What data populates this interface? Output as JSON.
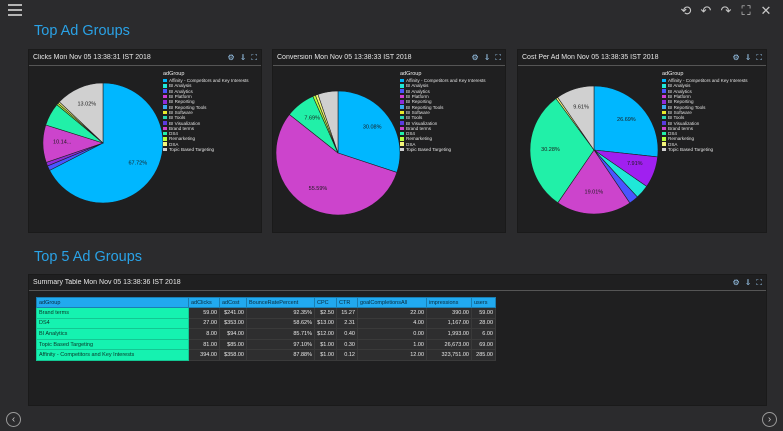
{
  "header": {
    "menu_icon": "hamburger-icon",
    "toolbar_icons": [
      "undo-icon",
      "redo-icon",
      "redo-alt-icon",
      "fullscreen-icon",
      "close-icon"
    ]
  },
  "sections": {
    "top_ad_groups": "Top Ad Groups",
    "top5_ad_groups": "Top 5 Ad Groups"
  },
  "legend": {
    "title": "adGroup",
    "items": [
      {
        "label": "Affinity - Competitors and Key Interests",
        "color": "#00b7ff"
      },
      {
        "label": "BI Analysis",
        "color": "#1fe8d8"
      },
      {
        "label": "BI Analytics",
        "color": "#4a55ff"
      },
      {
        "label": "BI Platform",
        "color": "#cf3bd6"
      },
      {
        "label": "BI Reporting",
        "color": "#8f2bd9"
      },
      {
        "label": "BI Reporting Tools",
        "color": "#3aa7ee"
      },
      {
        "label": "BI Software",
        "color": "#e8e82a"
      },
      {
        "label": "BI Tools",
        "color": "#2ad2b0"
      },
      {
        "label": "BI Visualization",
        "color": "#5b3ae0"
      },
      {
        "label": "Brand terms",
        "color": "#cc44cc"
      },
      {
        "label": "DS4",
        "color": "#21f0a8"
      },
      {
        "label": "Remarketing",
        "color": "#b6ff3c"
      },
      {
        "label": "DSA",
        "color": "#f5f57a"
      },
      {
        "label": "Topic Based Targeting",
        "color": "#d0d0d0"
      }
    ]
  },
  "chart_data": [
    {
      "type": "pie",
      "title": "Clicks Mon Nov 05 13:38:31 IST 2018",
      "slices": [
        {
          "name": "Affinity - Competitors and Key Interests",
          "value": 67.72,
          "color": "#00b7ff",
          "label": "67.72%"
        },
        {
          "name": "BI Analytics",
          "value": 1.3,
          "color": "#4a55ff",
          "label": ""
        },
        {
          "name": "BI Reporting",
          "value": 1.0,
          "color": "#8f2bd9",
          "label": ""
        },
        {
          "name": "Brand terms",
          "value": 10.14,
          "color": "#cc44cc",
          "label": "10.14..."
        },
        {
          "name": "DS4",
          "value": 6.2,
          "color": "#21f0a8",
          "label": ""
        },
        {
          "name": "Remarketing",
          "value": 0.5,
          "color": "#b6ff3c",
          "label": ""
        },
        {
          "name": "DSA",
          "value": 0.5,
          "color": "#f5f57a",
          "label": ""
        },
        {
          "name": "Topic Based Targeting",
          "value": 13.02,
          "color": "#d0d0d0",
          "label": "13.02%"
        }
      ]
    },
    {
      "type": "pie",
      "title": "Conversion Mon Nov 05 13:38:33 IST 2018",
      "slices": [
        {
          "name": "Affinity - Competitors and Key Interests",
          "value": 30.08,
          "color": "#00b7ff",
          "label": "30.08%"
        },
        {
          "name": "Brand terms",
          "value": 55.59,
          "color": "#cc44cc",
          "label": "55.59%"
        },
        {
          "name": "DS4",
          "value": 7.69,
          "color": "#21f0a8",
          "label": "7.69%"
        },
        {
          "name": "Remarketing",
          "value": 0.7,
          "color": "#b6ff3c",
          "label": ""
        },
        {
          "name": "DSA",
          "value": 0.7,
          "color": "#f5f57a",
          "label": ""
        },
        {
          "name": "Topic Based Targeting",
          "value": 5.24,
          "color": "#d0d0d0",
          "label": ""
        }
      ]
    },
    {
      "type": "pie",
      "title": "Cost Per Ad Mon Nov 05 13:38:35 IST 2018",
      "slices": [
        {
          "name": "Affinity - Competitors and Key Interests",
          "value": 26.69,
          "color": "#00b7ff",
          "label": "26.69%"
        },
        {
          "name": "BI Platform",
          "value": 7.91,
          "color": "#a020f0",
          "label": "7.91%"
        },
        {
          "name": "BI Analysis",
          "value": 3.5,
          "color": "#1fe8d8",
          "label": ""
        },
        {
          "name": "BI Analytics",
          "value": 2.4,
          "color": "#4a55ff",
          "label": ""
        },
        {
          "name": "Brand terms",
          "value": 19.01,
          "color": "#cc44cc",
          "label": "19.01%"
        },
        {
          "name": "DS4",
          "value": 30.28,
          "color": "#21f0a8",
          "label": "30.28%"
        },
        {
          "name": "DSA",
          "value": 0.5,
          "color": "#f5f57a",
          "label": ""
        },
        {
          "name": "Topic Based Targeting",
          "value": 9.61,
          "color": "#d0d0d0",
          "label": "9.61%"
        }
      ]
    }
  ],
  "panel_icons": [
    "settings-icon",
    "download-icon",
    "expand-icon"
  ],
  "summary_table": {
    "title": "Summary Table Mon Nov 05 13:38:36 IST 2018",
    "columns": [
      "adGroup",
      "adClicks",
      "adCost",
      "BounceRatePercent",
      "CPC",
      "CTR",
      "goalCompletionsAll",
      "impressions",
      "users"
    ],
    "rows": [
      [
        "Brand terms",
        "59.00",
        "$241.00",
        "92.35%",
        "$2.50",
        "15.27",
        "22.00",
        "390.00",
        "59.00"
      ],
      [
        "DS4",
        "27.00",
        "$353.00",
        "58.62%",
        "$13.00",
        "2.31",
        "4.00",
        "1,167.00",
        "28.00"
      ],
      [
        "BI Analytics",
        "8.00",
        "$94.00",
        "85.71%",
        "$12.00",
        "0.40",
        "0.00",
        "1,993.00",
        "6.00"
      ],
      [
        "Topic Based Targeting",
        "81.00",
        "$85.00",
        "97.10%",
        "$1.00",
        "0.30",
        "1.00",
        "26,673.00",
        "69.00"
      ],
      [
        "Affinity - Competitors and Key Interests",
        "394.00",
        "$358.00",
        "87.88%",
        "$1.00",
        "0.12",
        "12.00",
        "323,751.00",
        "285.00"
      ]
    ]
  },
  "nav": {
    "prev": "‹",
    "next": "›"
  }
}
